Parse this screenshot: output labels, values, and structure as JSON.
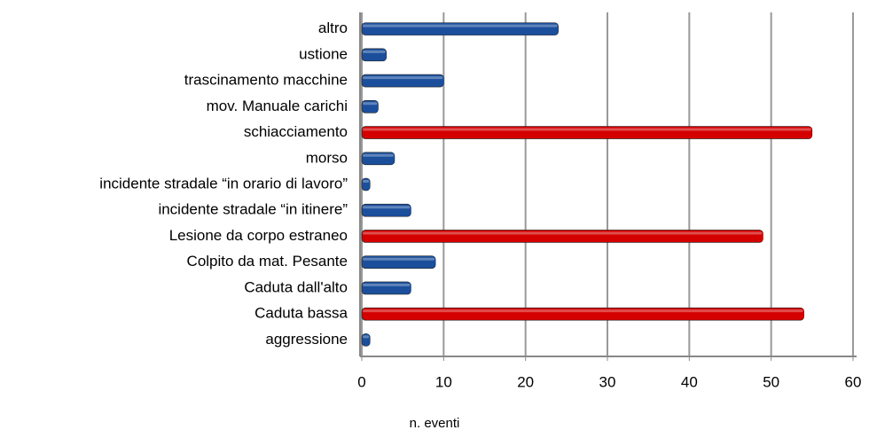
{
  "chart_data": {
    "type": "barh",
    "categories": [
      "altro",
      "ustione",
      "trascinamento macchine",
      "mov. Manuale carichi",
      "schiacciamento",
      "morso",
      "incidente stradale “in orario di lavoro”",
      "incidente stradale “in itinere”",
      "Lesione da corpo estraneo",
      "Colpito da mat. Pesante",
      "Caduta dall'alto",
      "Caduta bassa",
      "aggressione"
    ],
    "values": [
      24,
      3,
      10,
      2,
      55,
      4,
      1,
      6,
      49,
      9,
      6,
      54,
      1
    ],
    "colors": [
      "#1b4f9c",
      "#1b4f9c",
      "#1b4f9c",
      "#1b4f9c",
      "#d40000",
      "#1b4f9c",
      "#1b4f9c",
      "#1b4f9c",
      "#d40000",
      "#1b4f9c",
      "#1b4f9c",
      "#d40000",
      "#1b4f9c"
    ],
    "xlabel": "n. eventi",
    "xlim": [
      0,
      60
    ],
    "xticks": [
      0,
      10,
      20,
      30,
      40,
      50,
      60
    ],
    "grid": true
  }
}
